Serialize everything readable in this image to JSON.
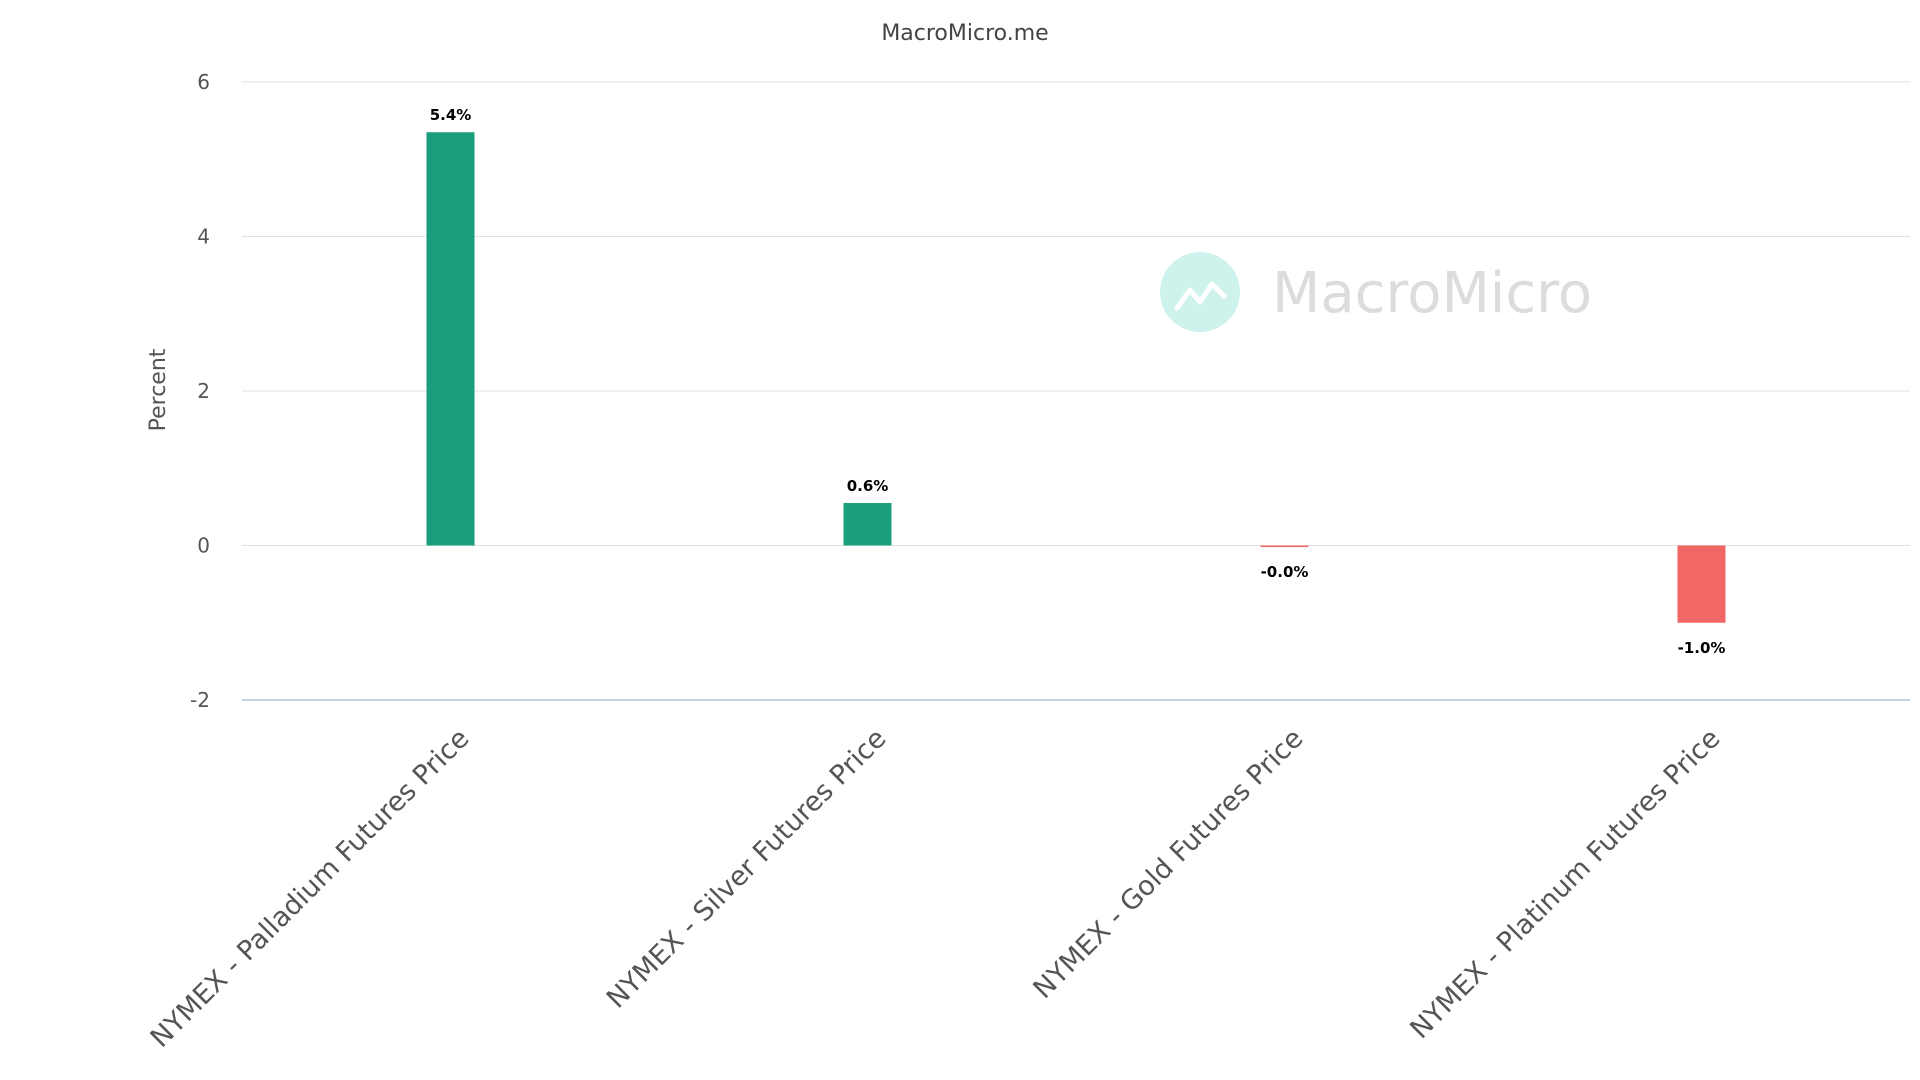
{
  "credit": "MacroMicro.me",
  "watermark": {
    "text": "MacroMicro",
    "icon": "line-chart-icon"
  },
  "colors": {
    "positive": "#1a9e7c",
    "negative": "#f26666",
    "grid": "#e2e2e2",
    "zero_axis": "#aac8d6",
    "watermark_circle": "#cef3ec"
  },
  "chart_data": {
    "type": "bar",
    "title": "",
    "ylabel": "Percent",
    "ylim": [
      -2,
      6
    ],
    "yticks": [
      -2,
      0,
      2,
      4,
      6
    ],
    "ytick_labels": [
      "-2",
      "0",
      "2",
      "4",
      "6"
    ],
    "grid": true,
    "categories": [
      "NYMEX - Palladium Futures Price",
      "NYMEX - Silver Futures Price",
      "NYMEX - Gold Futures Price",
      "NYMEX - Platinum Futures Price"
    ],
    "values": [
      5.35,
      0.55,
      -0.02,
      -1.0
    ],
    "data_labels": [
      "5.4%",
      "0.6%",
      "-0.0%",
      "-1.0%"
    ]
  }
}
